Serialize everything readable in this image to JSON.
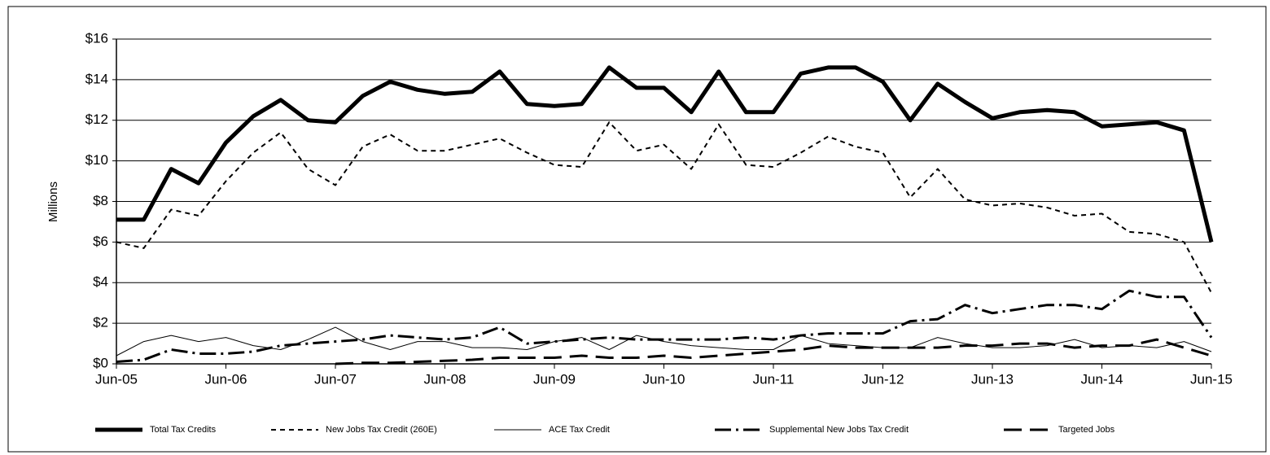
{
  "chart_data": {
    "type": "line",
    "y_label": "Millions",
    "categories": [
      "Jun-05",
      null,
      null,
      null,
      "Jun-06",
      null,
      null,
      null,
      "Jun-07",
      null,
      null,
      null,
      "Jun-08",
      null,
      null,
      null,
      "Jun-09",
      null,
      null,
      null,
      "Jun-10",
      null,
      null,
      null,
      "Jun-11",
      null,
      null,
      null,
      "Jun-12",
      null,
      null,
      null,
      "Jun-13",
      null,
      null,
      null,
      "Jun-14",
      null,
      null,
      null,
      "Jun-15"
    ],
    "series": [
      {
        "name": "Total Tax Credits",
        "color": "#000000",
        "width": 5,
        "dash": "none",
        "values": [
          7.1,
          7.1,
          9.6,
          8.9,
          10.9,
          12.2,
          13.0,
          12.0,
          11.9,
          13.2,
          13.9,
          13.5,
          13.3,
          13.4,
          14.4,
          12.8,
          12.7,
          12.8,
          14.6,
          13.6,
          13.6,
          12.4,
          14.4,
          12.4,
          12.4,
          14.3,
          14.6,
          14.6,
          13.9,
          12.0,
          13.8,
          12.9,
          12.1,
          12.4,
          12.5,
          12.4,
          11.7,
          11.8,
          11.9,
          11.5,
          6.0
        ]
      },
      {
        "name": "New Jobs Tax Credit (260E)",
        "color": "#000000",
        "width": 2,
        "dash": "6 5",
        "values": [
          6.0,
          5.7,
          7.6,
          7.3,
          9.0,
          10.4,
          11.4,
          9.6,
          8.8,
          10.7,
          11.3,
          10.5,
          10.5,
          10.8,
          11.1,
          10.4,
          9.8,
          9.7,
          11.9,
          10.5,
          10.8,
          9.6,
          11.8,
          9.8,
          9.7,
          10.4,
          11.2,
          10.7,
          10.4,
          8.2,
          9.6,
          8.1,
          7.8,
          7.9,
          7.7,
          7.3,
          7.4,
          6.5,
          6.4,
          6.0,
          3.5
        ]
      },
      {
        "name": "ACE Tax Credit",
        "color": "#000000",
        "width": 1,
        "dash": "none",
        "values": [
          0.4,
          1.1,
          1.4,
          1.1,
          1.3,
          0.9,
          0.7,
          1.2,
          1.8,
          1.1,
          0.7,
          1.1,
          1.1,
          0.8,
          0.8,
          0.7,
          1.1,
          1.3,
          0.7,
          1.4,
          1.1,
          0.9,
          0.8,
          0.7,
          0.7,
          1.4,
          1.0,
          0.9,
          0.8,
          0.8,
          1.3,
          1.0,
          0.8,
          0.8,
          0.9,
          1.2,
          0.8,
          0.9,
          0.8,
          1.1,
          0.6
        ]
      },
      {
        "name": "Supplemental New Jobs Tax Credit",
        "color": "#000000",
        "width": 3,
        "dash": "20 6 3 6",
        "values": [
          0.1,
          0.2,
          0.7,
          0.5,
          0.5,
          0.6,
          0.9,
          1.0,
          1.1,
          1.2,
          1.4,
          1.3,
          1.2,
          1.3,
          1.8,
          1.0,
          1.1,
          1.2,
          1.3,
          1.2,
          1.2,
          1.2,
          1.2,
          1.3,
          1.2,
          1.4,
          1.5,
          1.5,
          1.5,
          2.1,
          2.2,
          2.9,
          2.5,
          2.7,
          2.9,
          2.9,
          2.7,
          3.6,
          3.3,
          3.3,
          1.3
        ]
      },
      {
        "name": "Targeted Jobs",
        "color": "#000000",
        "width": 3,
        "dash": "22 10",
        "values": [
          null,
          null,
          null,
          null,
          null,
          null,
          null,
          null,
          0.0,
          0.05,
          0.05,
          0.1,
          0.15,
          0.2,
          0.3,
          0.3,
          0.3,
          0.4,
          0.3,
          0.3,
          0.4,
          0.3,
          0.4,
          0.5,
          0.6,
          0.7,
          0.9,
          0.8,
          0.8,
          0.8,
          0.8,
          0.9,
          0.9,
          1.0,
          1.0,
          0.8,
          0.9,
          0.9,
          1.2,
          0.8,
          0.4
        ]
      }
    ],
    "ylim": [
      0,
      16
    ],
    "yticks": [
      {
        "value": 0,
        "label": "$0"
      },
      {
        "value": 2,
        "label": "$2"
      },
      {
        "value": 4,
        "label": "$4"
      },
      {
        "value": 6,
        "label": "$6"
      },
      {
        "value": 8,
        "label": "$8"
      },
      {
        "value": 10,
        "label": "$10"
      },
      {
        "value": 12,
        "label": "$12"
      },
      {
        "value": 14,
        "label": "$14"
      },
      {
        "value": 16,
        "label": "$16"
      }
    ],
    "grid": true,
    "legend": "bottom"
  }
}
